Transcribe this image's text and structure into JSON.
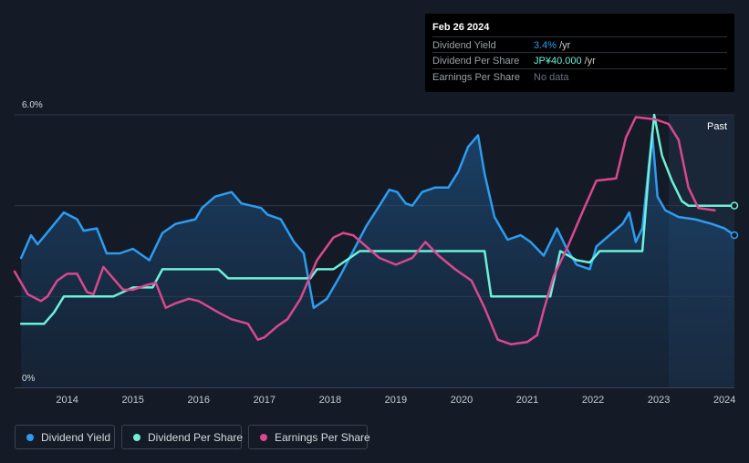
{
  "tooltip": {
    "date": "Feb 26 2024",
    "rows": [
      {
        "label": "Dividend Yield",
        "value": "3.4%",
        "unit": "/yr",
        "color": "#2d9cf0"
      },
      {
        "label": "Dividend Per Share",
        "value": "JP¥40.000",
        "unit": "/yr",
        "color": "#6ef0d8"
      },
      {
        "label": "Earnings Per Share",
        "value": "No data",
        "unit": "",
        "color": "#6b7280"
      }
    ]
  },
  "legend": [
    {
      "label": "Dividend Yield",
      "color": "#2d9cf0"
    },
    {
      "label": "Dividend Per Share",
      "color": "#6ef0d8"
    },
    {
      "label": "Earnings Per Share",
      "color": "#d9488f"
    }
  ],
  "past_label": "Past",
  "chart_data": {
    "type": "line",
    "xlim": [
      2013.2,
      2024.15
    ],
    "ylim": [
      0,
      6.0
    ],
    "y_tick_labels": [
      {
        "value": 6.0,
        "label": "6.0%"
      },
      {
        "value": 0,
        "label": "0%"
      }
    ],
    "x_ticks": [
      2014,
      2015,
      2016,
      2017,
      2018,
      2019,
      2020,
      2021,
      2022,
      2023,
      2024
    ],
    "x_tick_labels": [
      "2014",
      "2015",
      "2016",
      "2017",
      "2018",
      "2019",
      "2020",
      "2021",
      "2022",
      "2023",
      "2024"
    ],
    "gridlines": [
      2.0,
      4.0,
      6.0
    ],
    "highlight_from": 2023.15,
    "series": [
      {
        "name": "Dividend Yield",
        "color": "#2d9cf0",
        "filled": true,
        "points": [
          [
            2013.3,
            2.85
          ],
          [
            2013.45,
            3.35
          ],
          [
            2013.55,
            3.15
          ],
          [
            2013.75,
            3.5
          ],
          [
            2013.95,
            3.85
          ],
          [
            2014.15,
            3.7
          ],
          [
            2014.25,
            3.45
          ],
          [
            2014.45,
            3.5
          ],
          [
            2014.6,
            2.95
          ],
          [
            2014.8,
            2.95
          ],
          [
            2015.0,
            3.05
          ],
          [
            2015.25,
            2.8
          ],
          [
            2015.45,
            3.4
          ],
          [
            2015.65,
            3.6
          ],
          [
            2015.95,
            3.7
          ],
          [
            2016.05,
            3.95
          ],
          [
            2016.25,
            4.2
          ],
          [
            2016.5,
            4.3
          ],
          [
            2016.65,
            4.05
          ],
          [
            2016.95,
            3.95
          ],
          [
            2017.05,
            3.8
          ],
          [
            2017.25,
            3.7
          ],
          [
            2017.45,
            3.2
          ],
          [
            2017.6,
            2.95
          ],
          [
            2017.68,
            2.3
          ],
          [
            2017.75,
            1.75
          ],
          [
            2017.95,
            1.95
          ],
          [
            2018.15,
            2.45
          ],
          [
            2018.35,
            3.0
          ],
          [
            2018.55,
            3.55
          ],
          [
            2018.75,
            4.0
          ],
          [
            2018.9,
            4.35
          ],
          [
            2019.02,
            4.3
          ],
          [
            2019.15,
            4.05
          ],
          [
            2019.25,
            4.0
          ],
          [
            2019.4,
            4.3
          ],
          [
            2019.6,
            4.4
          ],
          [
            2019.8,
            4.4
          ],
          [
            2019.95,
            4.75
          ],
          [
            2020.1,
            5.3
          ],
          [
            2020.25,
            5.55
          ],
          [
            2020.35,
            4.7
          ],
          [
            2020.5,
            3.75
          ],
          [
            2020.7,
            3.25
          ],
          [
            2020.9,
            3.35
          ],
          [
            2021.05,
            3.2
          ],
          [
            2021.25,
            2.9
          ],
          [
            2021.45,
            3.5
          ],
          [
            2021.6,
            3.05
          ],
          [
            2021.75,
            2.7
          ],
          [
            2021.95,
            2.6
          ],
          [
            2022.05,
            3.1
          ],
          [
            2022.25,
            3.35
          ],
          [
            2022.45,
            3.6
          ],
          [
            2022.55,
            3.85
          ],
          [
            2022.65,
            3.2
          ],
          [
            2022.75,
            3.5
          ],
          [
            2022.9,
            5.6
          ],
          [
            2022.98,
            4.2
          ],
          [
            2023.1,
            3.9
          ],
          [
            2023.3,
            3.75
          ],
          [
            2023.55,
            3.7
          ],
          [
            2023.8,
            3.6
          ],
          [
            2024.0,
            3.5
          ],
          [
            2024.15,
            3.35
          ]
        ]
      },
      {
        "name": "Dividend Per Share",
        "color": "#6ef0d8",
        "filled": false,
        "points": [
          [
            2013.3,
            1.4
          ],
          [
            2013.65,
            1.4
          ],
          [
            2013.8,
            1.65
          ],
          [
            2013.95,
            2.0
          ],
          [
            2014.2,
            2.0
          ],
          [
            2014.5,
            2.0
          ],
          [
            2014.7,
            2.0
          ],
          [
            2014.85,
            2.1
          ],
          [
            2015.0,
            2.2
          ],
          [
            2015.3,
            2.2
          ],
          [
            2015.45,
            2.6
          ],
          [
            2016.3,
            2.6
          ],
          [
            2016.45,
            2.4
          ],
          [
            2017.7,
            2.4
          ],
          [
            2017.8,
            2.6
          ],
          [
            2018.05,
            2.6
          ],
          [
            2018.15,
            2.7
          ],
          [
            2018.45,
            3.0
          ],
          [
            2020.35,
            3.0
          ],
          [
            2020.45,
            2.0
          ],
          [
            2021.35,
            2.0
          ],
          [
            2021.5,
            3.0
          ],
          [
            2021.75,
            2.8
          ],
          [
            2021.95,
            2.75
          ],
          [
            2022.1,
            3.0
          ],
          [
            2022.6,
            3.0
          ],
          [
            2022.75,
            3.0
          ],
          [
            2022.85,
            4.8
          ],
          [
            2022.93,
            6.0
          ],
          [
            2023.05,
            5.1
          ],
          [
            2023.2,
            4.55
          ],
          [
            2023.35,
            4.1
          ],
          [
            2023.45,
            4.0
          ],
          [
            2024.15,
            4.0
          ]
        ]
      },
      {
        "name": "Earnings Per Share",
        "color": "#d9488f",
        "filled": false,
        "points": [
          [
            2013.2,
            2.55
          ],
          [
            2013.4,
            2.05
          ],
          [
            2013.6,
            1.9
          ],
          [
            2013.7,
            2.0
          ],
          [
            2013.85,
            2.35
          ],
          [
            2014.0,
            2.5
          ],
          [
            2014.15,
            2.5
          ],
          [
            2014.3,
            2.1
          ],
          [
            2014.4,
            2.05
          ],
          [
            2014.55,
            2.65
          ],
          [
            2014.7,
            2.4
          ],
          [
            2014.85,
            2.15
          ],
          [
            2015.0,
            2.15
          ],
          [
            2015.2,
            2.25
          ],
          [
            2015.35,
            2.3
          ],
          [
            2015.5,
            1.75
          ],
          [
            2015.65,
            1.85
          ],
          [
            2015.85,
            1.95
          ],
          [
            2016.0,
            1.9
          ],
          [
            2016.3,
            1.65
          ],
          [
            2016.5,
            1.5
          ],
          [
            2016.75,
            1.4
          ],
          [
            2016.9,
            1.05
          ],
          [
            2017.0,
            1.1
          ],
          [
            2017.2,
            1.35
          ],
          [
            2017.35,
            1.5
          ],
          [
            2017.55,
            1.95
          ],
          [
            2017.8,
            2.8
          ],
          [
            2018.05,
            3.3
          ],
          [
            2018.2,
            3.4
          ],
          [
            2018.35,
            3.35
          ],
          [
            2018.55,
            3.1
          ],
          [
            2018.75,
            2.85
          ],
          [
            2019.0,
            2.7
          ],
          [
            2019.25,
            2.85
          ],
          [
            2019.45,
            3.2
          ],
          [
            2019.65,
            2.9
          ],
          [
            2019.9,
            2.6
          ],
          [
            2020.15,
            2.35
          ],
          [
            2020.35,
            1.75
          ],
          [
            2020.55,
            1.05
          ],
          [
            2020.75,
            0.95
          ],
          [
            2021.0,
            1.0
          ],
          [
            2021.15,
            1.15
          ],
          [
            2021.25,
            1.7
          ],
          [
            2021.4,
            2.45
          ],
          [
            2021.6,
            3.05
          ],
          [
            2021.85,
            3.9
          ],
          [
            2022.05,
            4.55
          ],
          [
            2022.35,
            4.6
          ],
          [
            2022.5,
            5.5
          ],
          [
            2022.65,
            5.95
          ],
          [
            2022.95,
            5.9
          ],
          [
            2023.15,
            5.8
          ],
          [
            2023.3,
            5.45
          ],
          [
            2023.45,
            4.4
          ],
          [
            2023.6,
            3.95
          ],
          [
            2023.85,
            3.9
          ]
        ]
      }
    ]
  }
}
